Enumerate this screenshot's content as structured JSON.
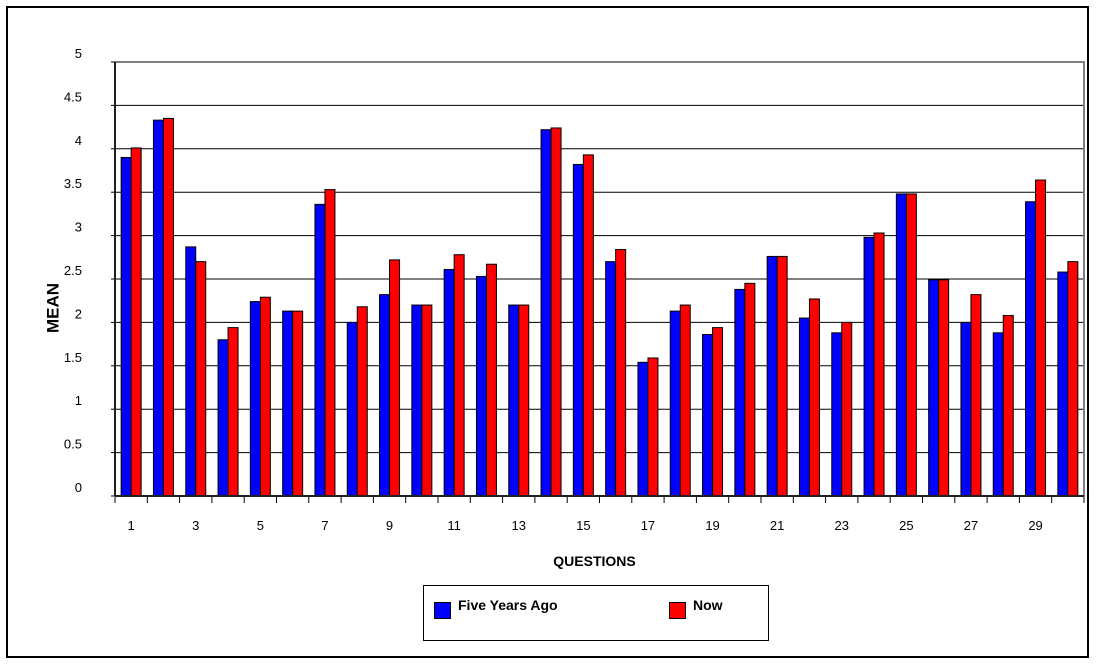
{
  "chart_data": {
    "type": "bar",
    "ylabel": "MEAN",
    "xlabel": "QUESTIONS",
    "ylim": [
      0,
      5
    ],
    "yticks": [
      0,
      0.5,
      1,
      1.5,
      2,
      2.5,
      3,
      3.5,
      4,
      4.5,
      5
    ],
    "ytick_labels": [
      "0",
      "0.5",
      "1",
      "1.5",
      "2",
      "2.5",
      "3",
      "3.5",
      "4",
      "4.5",
      "5"
    ],
    "categories": [
      1,
      2,
      3,
      4,
      5,
      6,
      7,
      8,
      9,
      10,
      11,
      12,
      13,
      14,
      15,
      16,
      17,
      18,
      19,
      20,
      21,
      22,
      23,
      24,
      25,
      26,
      27,
      28,
      29,
      30
    ],
    "xtick_labels": [
      "1",
      "3",
      "5",
      "7",
      "9",
      "11",
      "13",
      "15",
      "17",
      "19",
      "21",
      "23",
      "25",
      "27",
      "29"
    ],
    "grid": true,
    "legend_position": "bottom",
    "series": [
      {
        "name": "Five Years Ago",
        "color": "#0000ff",
        "values": [
          3.9,
          4.33,
          2.87,
          1.8,
          2.24,
          2.13,
          3.36,
          2.0,
          2.32,
          2.2,
          2.61,
          2.53,
          2.2,
          4.22,
          3.82,
          2.7,
          1.54,
          2.13,
          1.86,
          2.38,
          2.76,
          2.05,
          1.88,
          2.98,
          3.48,
          2.49,
          2.0,
          1.88,
          3.39,
          2.58
        ]
      },
      {
        "name": "Now",
        "color": "#ff0000",
        "values": [
          4.01,
          4.35,
          2.7,
          1.94,
          2.29,
          2.13,
          3.53,
          2.18,
          2.72,
          2.2,
          2.78,
          2.67,
          2.2,
          4.24,
          3.93,
          2.84,
          1.59,
          2.2,
          1.94,
          2.45,
          2.76,
          2.27,
          2.0,
          3.03,
          3.48,
          2.49,
          2.32,
          2.08,
          3.64,
          2.7
        ]
      }
    ]
  }
}
